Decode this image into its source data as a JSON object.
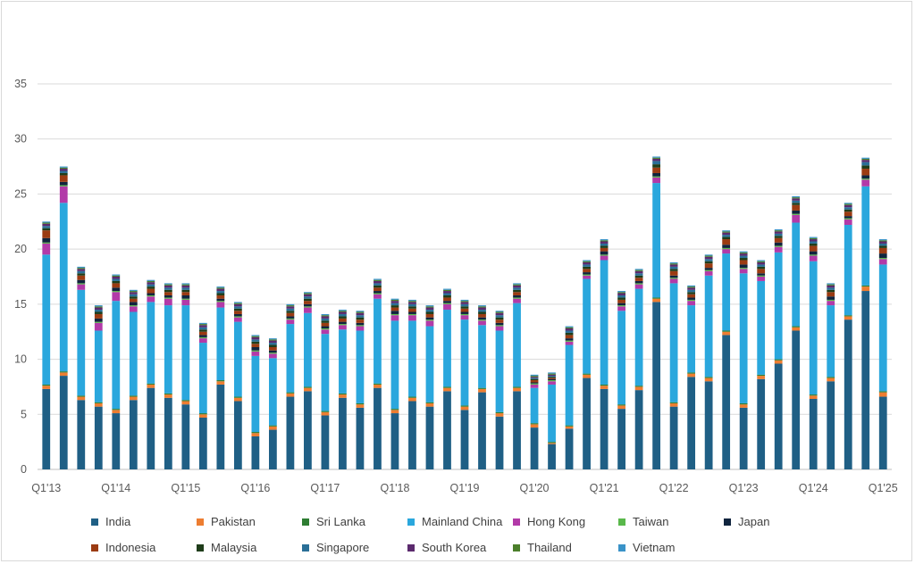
{
  "chart_data": {
    "type": "bar",
    "stacked": true,
    "title": "",
    "xlabel": "",
    "ylabel": "",
    "ylim": [
      0,
      35
    ],
    "yticks": [
      0,
      5,
      10,
      15,
      20,
      25,
      30,
      35
    ],
    "grid": true,
    "legend_position": "bottom",
    "x_tick_labels": [
      {
        "index": 0,
        "label": "Q1'13"
      },
      {
        "index": 4,
        "label": "Q1'14"
      },
      {
        "index": 8,
        "label": "Q1'15"
      },
      {
        "index": 12,
        "label": "Q1'16"
      },
      {
        "index": 16,
        "label": "Q1'17"
      },
      {
        "index": 20,
        "label": "Q1'18"
      },
      {
        "index": 24,
        "label": "Q1'19"
      },
      {
        "index": 28,
        "label": "Q1'20"
      },
      {
        "index": 32,
        "label": "Q1'21"
      },
      {
        "index": 36,
        "label": "Q1'22"
      },
      {
        "index": 40,
        "label": "Q1'23"
      },
      {
        "index": 44,
        "label": "Q1'24"
      },
      {
        "index": 48,
        "label": "Q1'25"
      }
    ],
    "categories": [
      "Q1'13",
      "Q2'13",
      "Q3'13",
      "Q4'13",
      "Q1'14",
      "Q2'14",
      "Q3'14",
      "Q4'14",
      "Q1'15",
      "Q2'15",
      "Q3'15",
      "Q4'15",
      "Q1'16",
      "Q2'16",
      "Q3'16",
      "Q4'16",
      "Q1'17",
      "Q2'17",
      "Q3'17",
      "Q4'17",
      "Q1'18",
      "Q2'18",
      "Q3'18",
      "Q4'18",
      "Q1'19",
      "Q2'19",
      "Q3'19",
      "Q4'19",
      "Q1'20",
      "Q2'20",
      "Q3'20",
      "Q4'20",
      "Q1'21",
      "Q2'21",
      "Q3'21",
      "Q4'21",
      "Q1'22",
      "Q2'22",
      "Q3'22",
      "Q4'22",
      "Q1'23",
      "Q2'23",
      "Q3'23",
      "Q4'23",
      "Q1'24",
      "Q2'24",
      "Q3'24",
      "Q4'24",
      "Q1'25"
    ],
    "series": [
      {
        "name": "India",
        "color": "#1f5f85",
        "values": [
          7.3,
          8.5,
          6.3,
          5.7,
          5.1,
          6.3,
          7.4,
          6.5,
          5.9,
          4.7,
          7.7,
          6.2,
          3.0,
          3.6,
          6.6,
          7.1,
          4.9,
          6.5,
          5.6,
          7.4,
          5.1,
          6.2,
          5.7,
          7.1,
          5.4,
          7.0,
          4.8,
          7.1,
          3.8,
          2.3,
          3.7,
          8.3,
          7.3,
          5.5,
          7.2,
          15.2,
          5.7,
          8.4,
          8.0,
          12.2,
          5.6,
          8.2,
          9.6,
          12.6,
          6.4,
          8.0,
          13.6,
          16.2,
          6.6
        ]
      },
      {
        "name": "Pakistan",
        "color": "#ed7d31",
        "values": [
          0.3,
          0.3,
          0.3,
          0.3,
          0.3,
          0.3,
          0.3,
          0.3,
          0.3,
          0.3,
          0.3,
          0.3,
          0.3,
          0.3,
          0.3,
          0.3,
          0.3,
          0.3,
          0.3,
          0.3,
          0.3,
          0.3,
          0.3,
          0.3,
          0.3,
          0.3,
          0.3,
          0.3,
          0.3,
          0.1,
          0.2,
          0.3,
          0.3,
          0.3,
          0.3,
          0.3,
          0.3,
          0.3,
          0.3,
          0.3,
          0.3,
          0.3,
          0.3,
          0.3,
          0.3,
          0.3,
          0.3,
          0.4,
          0.4
        ]
      },
      {
        "name": "Sri Lanka",
        "color": "#2e7d32",
        "values": [
          0.1,
          0.1,
          0.1,
          0.1,
          0.1,
          0.1,
          0.1,
          0.1,
          0.1,
          0.1,
          0.1,
          0.1,
          0.1,
          0.1,
          0.1,
          0.1,
          0.1,
          0.1,
          0.1,
          0.1,
          0.1,
          0.1,
          0.1,
          0.1,
          0.1,
          0.1,
          0.1,
          0.1,
          0.1,
          0.1,
          0.1,
          0.1,
          0.1,
          0.1,
          0.1,
          0.1,
          0.1,
          0.1,
          0.1,
          0.1,
          0.1,
          0.1,
          0.1,
          0.1,
          0.1,
          0.1,
          0.1,
          0.1,
          0.1
        ]
      },
      {
        "name": "Mainland China",
        "color": "#2aa7dd",
        "values": [
          11.8,
          15.3,
          9.6,
          6.5,
          9.8,
          7.6,
          7.4,
          8.0,
          8.6,
          6.4,
          6.6,
          6.8,
          6.9,
          6.1,
          6.2,
          6.7,
          7.0,
          5.8,
          6.6,
          7.7,
          8.0,
          6.9,
          6.9,
          7.0,
          7.8,
          5.7,
          7.4,
          7.6,
          3.2,
          5.2,
          7.3,
          8.6,
          11.3,
          8.5,
          8.8,
          10.4,
          10.8,
          6.1,
          9.2,
          7.0,
          11.8,
          8.5,
          9.7,
          9.4,
          12.1,
          6.5,
          8.2,
          9.0,
          11.5
        ]
      },
      {
        "name": "Hong Kong",
        "color": "#b23aa8",
        "values": [
          1.0,
          1.5,
          0.5,
          0.7,
          0.8,
          0.5,
          0.5,
          0.6,
          0.5,
          0.4,
          0.5,
          0.4,
          0.4,
          0.4,
          0.4,
          0.5,
          0.4,
          0.4,
          0.4,
          0.4,
          0.5,
          0.5,
          0.5,
          0.5,
          0.4,
          0.4,
          0.4,
          0.4,
          0.3,
          0.3,
          0.3,
          0.3,
          0.4,
          0.4,
          0.4,
          0.5,
          0.4,
          0.4,
          0.4,
          0.4,
          0.4,
          0.4,
          0.5,
          0.7,
          0.5,
          0.4,
          0.5,
          0.6,
          0.5
        ]
      },
      {
        "name": "Taiwan",
        "color": "#59b84b",
        "values": [
          0.1,
          0.1,
          0.1,
          0.1,
          0.1,
          0.1,
          0.1,
          0.1,
          0.1,
          0.1,
          0.1,
          0.1,
          0.1,
          0.1,
          0.1,
          0.1,
          0.1,
          0.1,
          0.1,
          0.1,
          0.1,
          0.1,
          0.1,
          0.1,
          0.1,
          0.1,
          0.1,
          0.1,
          0.1,
          0.1,
          0.1,
          0.1,
          0.1,
          0.1,
          0.1,
          0.1,
          0.1,
          0.1,
          0.1,
          0.1,
          0.1,
          0.1,
          0.1,
          0.1,
          0.1,
          0.1,
          0.1,
          0.1,
          0.1
        ]
      },
      {
        "name": "Japan",
        "color": "#10243e",
        "values": [
          0.4,
          0.3,
          0.3,
          0.3,
          0.3,
          0.3,
          0.2,
          0.2,
          0.3,
          0.2,
          0.2,
          0.2,
          0.3,
          0.2,
          0.2,
          0.2,
          0.2,
          0.2,
          0.2,
          0.2,
          0.3,
          0.2,
          0.2,
          0.2,
          0.2,
          0.2,
          0.2,
          0.2,
          0.1,
          0.1,
          0.2,
          0.2,
          0.3,
          0.2,
          0.2,
          0.3,
          0.2,
          0.2,
          0.2,
          0.3,
          0.3,
          0.2,
          0.3,
          0.3,
          0.3,
          0.3,
          0.2,
          0.3,
          0.4
        ]
      },
      {
        "name": "Indonesia",
        "color": "#9b3b12",
        "values": [
          0.7,
          0.6,
          0.4,
          0.4,
          0.4,
          0.3,
          0.4,
          0.3,
          0.3,
          0.3,
          0.3,
          0.3,
          0.3,
          0.3,
          0.3,
          0.3,
          0.3,
          0.3,
          0.3,
          0.3,
          0.3,
          0.3,
          0.3,
          0.3,
          0.3,
          0.3,
          0.3,
          0.3,
          0.2,
          0.1,
          0.3,
          0.3,
          0.3,
          0.3,
          0.3,
          0.5,
          0.4,
          0.3,
          0.4,
          0.5,
          0.4,
          0.4,
          0.4,
          0.5,
          0.5,
          0.4,
          0.4,
          0.6,
          0.5
        ]
      },
      {
        "name": "Malaysia",
        "color": "#1f3d1a",
        "values": [
          0.2,
          0.2,
          0.2,
          0.2,
          0.2,
          0.2,
          0.2,
          0.2,
          0.2,
          0.2,
          0.2,
          0.2,
          0.2,
          0.2,
          0.2,
          0.2,
          0.2,
          0.2,
          0.2,
          0.2,
          0.2,
          0.2,
          0.2,
          0.2,
          0.2,
          0.2,
          0.2,
          0.2,
          0.1,
          0.1,
          0.2,
          0.2,
          0.2,
          0.2,
          0.2,
          0.3,
          0.2,
          0.2,
          0.2,
          0.2,
          0.2,
          0.2,
          0.2,
          0.2,
          0.2,
          0.2,
          0.2,
          0.3,
          0.2
        ]
      },
      {
        "name": "Singapore",
        "color": "#2a6f97",
        "values": [
          0.2,
          0.2,
          0.2,
          0.2,
          0.2,
          0.2,
          0.2,
          0.2,
          0.2,
          0.2,
          0.2,
          0.2,
          0.2,
          0.2,
          0.2,
          0.2,
          0.2,
          0.2,
          0.2,
          0.2,
          0.2,
          0.2,
          0.2,
          0.2,
          0.2,
          0.2,
          0.2,
          0.2,
          0.1,
          0.1,
          0.2,
          0.2,
          0.2,
          0.2,
          0.2,
          0.3,
          0.2,
          0.2,
          0.2,
          0.2,
          0.2,
          0.2,
          0.2,
          0.2,
          0.2,
          0.2,
          0.2,
          0.3,
          0.2
        ]
      },
      {
        "name": "South Korea",
        "color": "#5b2a6e",
        "values": [
          0.2,
          0.2,
          0.2,
          0.2,
          0.2,
          0.2,
          0.2,
          0.2,
          0.2,
          0.2,
          0.2,
          0.2,
          0.2,
          0.2,
          0.2,
          0.2,
          0.2,
          0.2,
          0.2,
          0.2,
          0.2,
          0.2,
          0.2,
          0.2,
          0.2,
          0.2,
          0.2,
          0.2,
          0.1,
          0.1,
          0.2,
          0.2,
          0.2,
          0.2,
          0.2,
          0.2,
          0.2,
          0.2,
          0.2,
          0.2,
          0.2,
          0.2,
          0.2,
          0.2,
          0.2,
          0.2,
          0.2,
          0.2,
          0.2
        ]
      },
      {
        "name": "Thailand",
        "color": "#4b7f2b",
        "values": [
          0.1,
          0.1,
          0.1,
          0.1,
          0.1,
          0.1,
          0.1,
          0.1,
          0.1,
          0.1,
          0.1,
          0.1,
          0.1,
          0.1,
          0.1,
          0.1,
          0.1,
          0.1,
          0.1,
          0.1,
          0.1,
          0.1,
          0.1,
          0.1,
          0.1,
          0.1,
          0.1,
          0.1,
          0.1,
          0.1,
          0.1,
          0.1,
          0.1,
          0.1,
          0.1,
          0.1,
          0.1,
          0.1,
          0.1,
          0.1,
          0.1,
          0.1,
          0.1,
          0.1,
          0.1,
          0.1,
          0.1,
          0.1,
          0.1
        ]
      },
      {
        "name": "Vietnam",
        "color": "#3a93c8",
        "values": [
          0.1,
          0.1,
          0.1,
          0.1,
          0.1,
          0.1,
          0.1,
          0.1,
          0.1,
          0.1,
          0.1,
          0.1,
          0.1,
          0.1,
          0.1,
          0.1,
          0.1,
          0.1,
          0.1,
          0.1,
          0.1,
          0.1,
          0.1,
          0.1,
          0.1,
          0.1,
          0.1,
          0.1,
          0.1,
          0.1,
          0.1,
          0.1,
          0.1,
          0.1,
          0.1,
          0.1,
          0.1,
          0.1,
          0.1,
          0.1,
          0.1,
          0.1,
          0.1,
          0.1,
          0.1,
          0.1,
          0.1,
          0.1,
          0.1
        ]
      }
    ]
  },
  "colors": {
    "grid": "#d9d9d9",
    "axis": "#bfbfbf",
    "tick_text": "#595959",
    "legend_text": "#404040"
  }
}
